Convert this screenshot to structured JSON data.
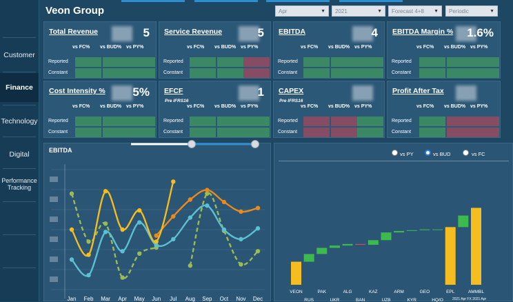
{
  "header": {
    "title": "Veon Group"
  },
  "filters": [
    {
      "name": "month-filter",
      "value": "Apr"
    },
    {
      "name": "year-filter",
      "value": "2021"
    },
    {
      "name": "forecast-filter",
      "value": "Forecast 4+8"
    },
    {
      "name": "period-filter",
      "value": "Periodic"
    }
  ],
  "sidebar": {
    "items": [
      {
        "label": "Customer"
      },
      {
        "label": "Finance"
      },
      {
        "label": "Technology"
      },
      {
        "label": "Digital"
      },
      {
        "label": "Performance Tracking"
      }
    ]
  },
  "kpis": [
    {
      "title": "Total Revenue",
      "subtitle": "",
      "value": "5"
    },
    {
      "title": "Service Revenue",
      "subtitle": "",
      "value": "5"
    },
    {
      "title": "EBITDA",
      "subtitle": "",
      "value": "4"
    },
    {
      "title": "EBITDA Margin %",
      "subtitle": "",
      "value": "1.6%"
    },
    {
      "title": "Cost Intensity %",
      "subtitle": "",
      "value": "5%"
    },
    {
      "title": "EFCF",
      "subtitle": "Pre IFRS16",
      "value": "1"
    },
    {
      "title": "CAPEX",
      "subtitle": "Pre IFRS16",
      "value": ""
    },
    {
      "title": "Profit After Tax",
      "subtitle": "",
      "value": ""
    }
  ],
  "kpi_columns": [
    "vs FC%",
    "vs BUD%",
    "vs PY%"
  ],
  "kpi_rows": [
    "Reported",
    "Constant"
  ],
  "colors": {
    "positive": "#3f9a5e",
    "negative": "#a3485d",
    "accent": "#f5bd1f"
  },
  "line_panel": {
    "title": "EBITDA"
  },
  "bridge_panel": {
    "options": [
      "vs PY",
      "vs BUD",
      "vs FC"
    ],
    "selected": "vs BUD",
    "footer": "2021 Apr FX 2021 Apr"
  },
  "chart_data": [
    {
      "type": "line",
      "title": "EBITDA",
      "categories": [
        "Jan",
        "Feb",
        "Mar",
        "Apr",
        "May",
        "Jun",
        "Jul",
        "Aug",
        "Sep",
        "Oct",
        "Nov",
        "Dec"
      ],
      "ylim": [
        0,
        10
      ],
      "series": [
        {
          "color": "#f5bd1f",
          "style": "solid",
          "values": [
            5.0,
            2.9,
            8.2,
            5.0,
            6.6,
            4.0,
            9.0,
            null,
            null,
            null,
            null,
            null
          ]
        },
        {
          "color": "#ea8a1c",
          "style": "solid",
          "values": [
            null,
            null,
            null,
            null,
            null,
            4.5,
            6.1,
            7.5,
            8.3,
            7.3,
            6.5,
            6.8
          ]
        },
        {
          "color": "#5cc0d3",
          "style": "solid",
          "values": [
            2.5,
            1.2,
            4.8,
            3.2,
            5.6,
            3.7,
            4.2,
            6.0,
            7.0,
            5.0,
            4.2,
            5.1
          ]
        },
        {
          "color": "#9bbc55",
          "style": "dashed",
          "values": [
            8.0,
            4.0,
            5.5,
            1.0,
            3.0,
            3.5,
            null,
            2.0,
            8.0,
            4.9,
            2.1,
            3.2
          ]
        }
      ]
    },
    {
      "type": "bar",
      "subtype": "waterfall",
      "categories": [
        "VEON",
        "RUS",
        "PAK",
        "UKR",
        "ALG",
        "BAN",
        "KAZ",
        "UZB",
        "ARM",
        "KYR",
        "GEO",
        "HQ/O",
        "EPL",
        "",
        "AMMBL"
      ],
      "values": [
        30,
        10,
        8,
        3,
        2,
        1,
        6,
        10,
        2,
        1,
        1,
        0,
        75,
        15,
        100
      ],
      "colors": [
        "#f5bd1f",
        "#3dba4e",
        "#3dba4e",
        "#3dba4e",
        "#3dba4e",
        "#e24a4a",
        "#3dba4e",
        "#3dba4e",
        "#3dba4e",
        "#3dba4e",
        "#3dba4e",
        "#3dba4e",
        "#f5bd1f",
        "#3dba4e",
        "#f5bd1f"
      ],
      "ylim": [
        0,
        130
      ]
    }
  ]
}
